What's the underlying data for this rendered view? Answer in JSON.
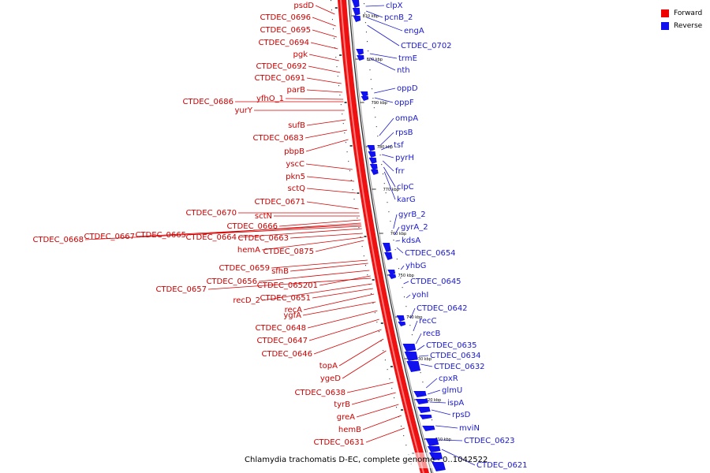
{
  "caption": "Chlamydia trachomatis D-EC, complete genome - 0..1042522",
  "legend": [
    {
      "label": "Forward",
      "color": "#ee0000"
    },
    {
      "label": "Reverse",
      "color": "#1111ee"
    }
  ],
  "colors": {
    "forward": "#ee0000",
    "reverse": "#1111ee",
    "forward_label": "#cc0000",
    "reverse_label": "#1a1acc"
  },
  "scale_ticks": [
    "810 kbp",
    "800 kbp",
    "790 kbp",
    "780 kbp",
    "770 kbp",
    "760 kbp",
    "750 kbp",
    "740 kbp",
    "730 kbp",
    "720 kbp",
    "710 kbp"
  ],
  "forward_genes": [
    "psdD",
    "CTDEC_0696",
    "CTDEC_0695",
    "CTDEC_0694",
    "pgk",
    "CTDEC_0692",
    "CTDEC_0691",
    "parB",
    "CTDEC_0686",
    "yfhO_1",
    "yurY",
    "sufB",
    "CTDEC_0683",
    "pbpB",
    "yscC",
    "pkn5",
    "sctQ",
    "CTDEC_0671",
    "CTDEC_0670",
    "sctN",
    "CTDEC_0666",
    "CTDEC_0668",
    "CTDEC_0667",
    "CTDEC_0665",
    "CTDEC_0664",
    "CTDEC_0663",
    "hemA",
    "CTDEC_0875",
    "CTDEC_0659",
    "sfhB",
    "CTDEC_0656",
    "CTDEC_065201",
    "CTDEC_0657",
    "recD_2",
    "CTDEC_0651",
    "recA",
    "ygfA",
    "CTDEC_0648",
    "CTDEC_0647",
    "CTDEC_0646",
    "topA",
    "ygeD",
    "CTDEC_0638",
    "tyrB",
    "greA",
    "hemB",
    "CTDEC_0631"
  ],
  "reverse_genes": [
    "clpX",
    "pcnB_2",
    "engA",
    "CTDEC_0702",
    "trmE",
    "nth",
    "oppD",
    "oppF",
    "ompA",
    "rpsB",
    "tsf",
    "pyrH",
    "frr",
    "clpC",
    "karG",
    "gyrB_2",
    "gyrA_2",
    "kdsA",
    "CTDEC_0654",
    "yhbG",
    "CTDEC_0645",
    "yohI",
    "CTDEC_0642",
    "recC",
    "recB",
    "CTDEC_0635",
    "CTDEC_0634",
    "CTDEC_0632",
    "cpxR",
    "glmU",
    "ispA",
    "rpsD",
    "mviN",
    "CTDEC_0623",
    "CTDEC_0621"
  ]
}
